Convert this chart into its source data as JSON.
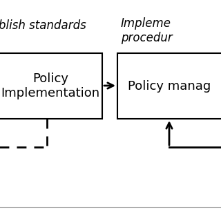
{
  "bg_color": "#ffffff",
  "text_top_left": "blish standards",
  "text_top_right": "Impleme\nprocedur",
  "box1_label": "Policy\nImplementation",
  "box2_label": "Policy manag",
  "font_size_label": 13,
  "font_size_top": 12
}
